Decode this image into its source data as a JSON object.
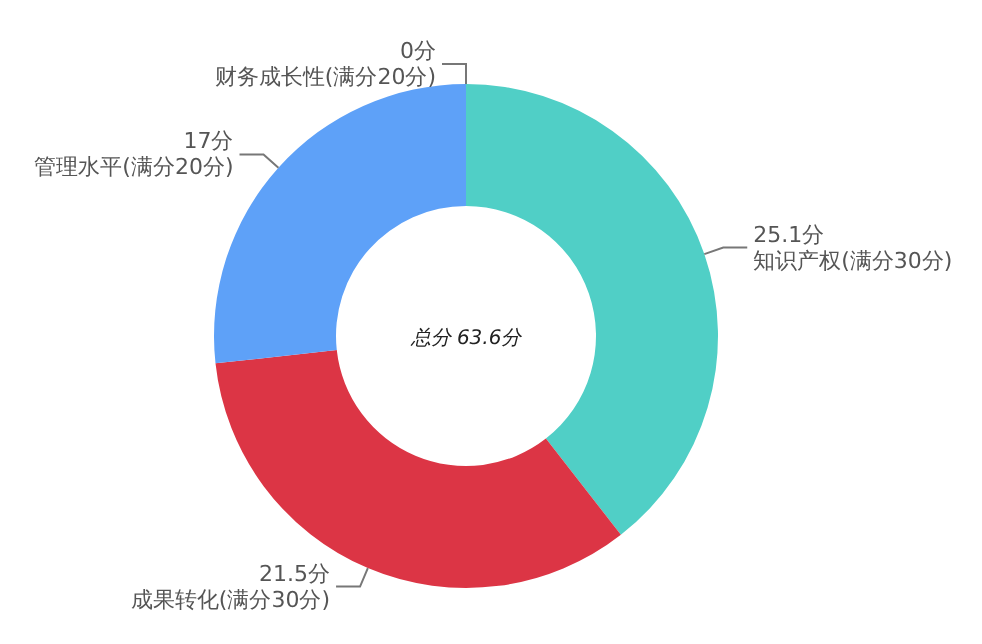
{
  "chart_data": {
    "type": "donut",
    "categories": [
      "知识产权(满分30分)",
      "成果转化(满分30分)",
      "管理水平(满分20分)",
      "财务成长性(满分20分)"
    ],
    "values": [
      25.1,
      21.5,
      17,
      0
    ],
    "value_labels": [
      "25.1分",
      "21.5分",
      "17分",
      "0分"
    ],
    "colors": [
      "#50cfc6",
      "#dc3545",
      "#5ea1f8",
      null
    ],
    "annotations": [
      "总分 63.6分"
    ]
  }
}
